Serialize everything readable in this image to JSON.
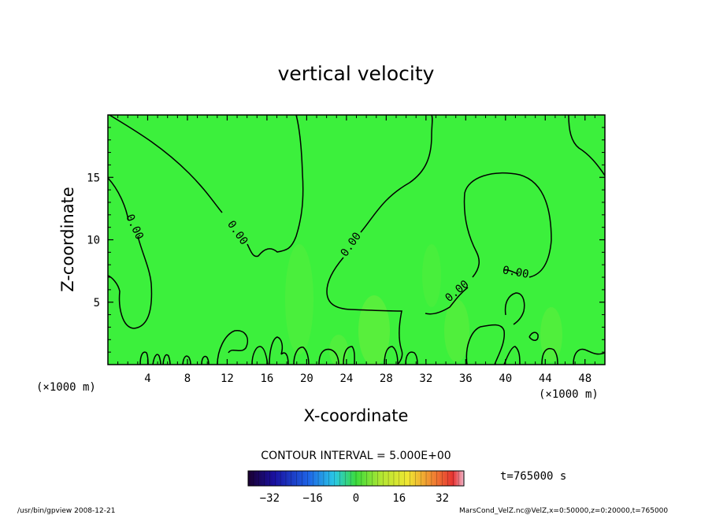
{
  "chart_data": {
    "type": "heatmap",
    "title": "vertical velocity",
    "xlabel": "X-coordinate",
    "ylabel": "Z-coordinate",
    "xunit_left": "(×1000 m)",
    "xunit_right": "(×1000 m)",
    "xlim": [
      0,
      50
    ],
    "ylim": [
      0,
      20
    ],
    "xticks": [
      4,
      8,
      12,
      16,
      20,
      24,
      28,
      32,
      36,
      40,
      44,
      48
    ],
    "yticks": [
      5,
      10,
      15
    ],
    "contour_label": "0.00",
    "contour_interval_text": "CONTOUR INTERVAL = 5.000E+00",
    "time_text": "t=765000 s",
    "colorbar": {
      "range": [
        -40,
        40
      ],
      "ticks": [
        -32,
        -16,
        0,
        16,
        32
      ]
    },
    "footer_left": "/usr/bin/gpview   2008-12-21",
    "footer_right": "MarsCond_VelZ.nc@VelZ,x=0:50000,z=0:20000,t=765000"
  }
}
